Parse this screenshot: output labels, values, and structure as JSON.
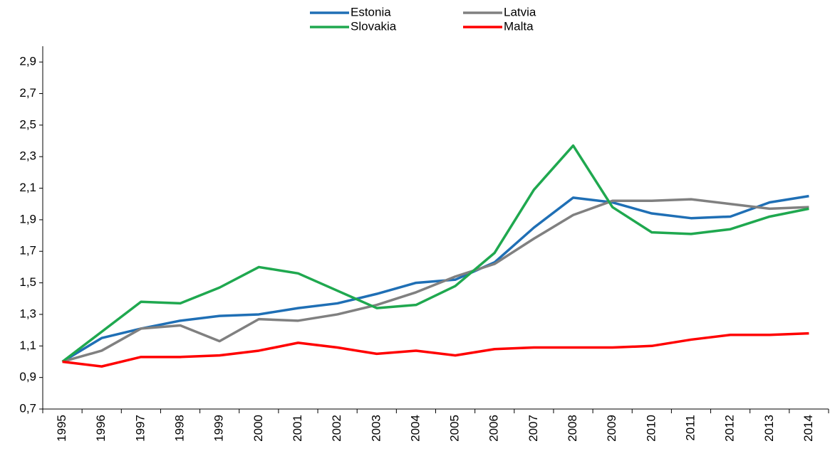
{
  "chart_data": {
    "type": "line",
    "categories": [
      "1995",
      "1996",
      "1997",
      "1998",
      "1999",
      "2000",
      "2001",
      "2002",
      "2003",
      "2004",
      "2005",
      "2006",
      "2007",
      "2008",
      "2009",
      "2010",
      "2011",
      "2012",
      "2013",
      "2014"
    ],
    "series": [
      {
        "name": "Estonia",
        "color": "#1f6fb5",
        "values": [
          1.0,
          1.15,
          1.21,
          1.26,
          1.29,
          1.3,
          1.34,
          1.37,
          1.43,
          1.5,
          1.52,
          1.63,
          1.85,
          2.04,
          2.01,
          1.94,
          1.91,
          1.92,
          2.01,
          2.05
        ]
      },
      {
        "name": "Latvia",
        "color": "#808080",
        "values": [
          1.0,
          1.07,
          1.21,
          1.23,
          1.13,
          1.27,
          1.26,
          1.3,
          1.36,
          1.44,
          1.54,
          1.62,
          1.78,
          1.93,
          2.02,
          2.02,
          2.03,
          2.0,
          1.97,
          1.98
        ]
      },
      {
        "name": "Slovakia",
        "color": "#1fa84f",
        "values": [
          1.0,
          1.19,
          1.38,
          1.37,
          1.47,
          1.6,
          1.56,
          1.45,
          1.34,
          1.36,
          1.48,
          1.69,
          2.09,
          2.37,
          1.98,
          1.82,
          1.81,
          1.84,
          1.92,
          1.97
        ]
      },
      {
        "name": "Malta",
        "color": "#ff0000",
        "values": [
          1.0,
          0.97,
          1.03,
          1.03,
          1.04,
          1.07,
          1.12,
          1.09,
          1.05,
          1.07,
          1.04,
          1.08,
          1.09,
          1.09,
          1.09,
          1.1,
          1.14,
          1.17,
          1.17,
          1.18
        ]
      }
    ],
    "ylim": [
      0.7,
      3.0
    ],
    "yticks": [
      {
        "value": 0.7,
        "label": "0,7"
      },
      {
        "value": 0.9,
        "label": "0,9"
      },
      {
        "value": 1.1,
        "label": "1,1"
      },
      {
        "value": 1.3,
        "label": "1,3"
      },
      {
        "value": 1.5,
        "label": "1,5"
      },
      {
        "value": 1.7,
        "label": "1,7"
      },
      {
        "value": 1.9,
        "label": "1,9"
      },
      {
        "value": 2.1,
        "label": "2,1"
      },
      {
        "value": 2.3,
        "label": "2,3"
      },
      {
        "value": 2.5,
        "label": "2,5"
      },
      {
        "value": 2.7,
        "label": "2,7"
      },
      {
        "value": 2.9,
        "label": "2,9"
      }
    ],
    "grid": false
  }
}
